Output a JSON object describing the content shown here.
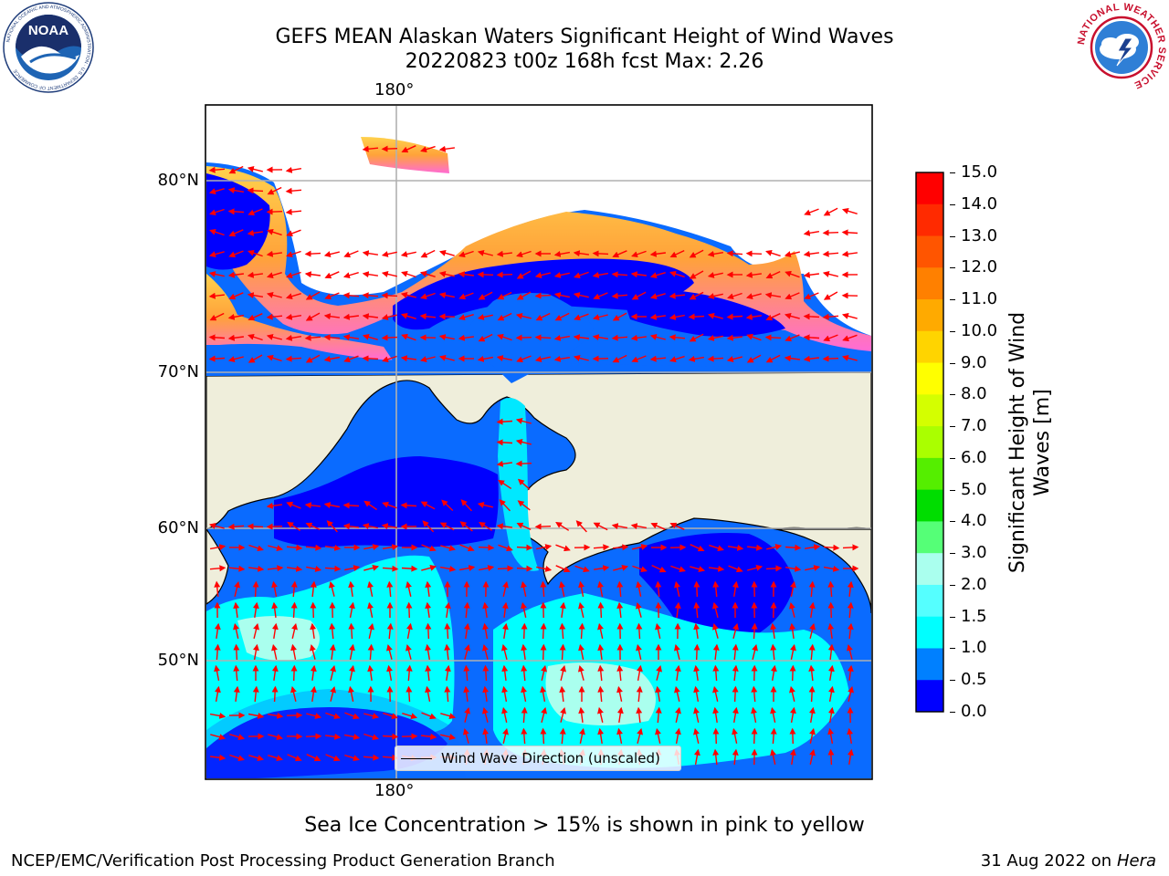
{
  "title": {
    "line1": "GEFS MEAN Alaskan Waters Significant Height of Wind Waves",
    "line2": "20220823 t00z 168h fcst   Max: 2.26"
  },
  "logos": {
    "left": {
      "icon": "noaa-logo",
      "text": "NOAA",
      "ring_text": "NATIONAL OCEANIC AND ATMOSPHERIC ADMINISTRATION · U.S. DEPARTMENT OF COMMERCE"
    },
    "right": {
      "icon": "nws-logo",
      "ring_text": "NATIONAL WEATHER SERVICE"
    }
  },
  "map": {
    "lon_ticks": {
      "top": "180°",
      "bottom": "180°"
    },
    "lat_ticks": [
      "80°N",
      "70°N",
      "60°N",
      "50°N"
    ],
    "legend": {
      "label": "Wind Wave Direction (unscaled)"
    },
    "colors": {
      "land": "#efeedb",
      "ice_free_white": "#ffffff",
      "arrow": "#ff0000"
    }
  },
  "colorbar": {
    "title": "Significant Height of Wind\nWaves [m]",
    "labels": [
      "15.0",
      "14.0",
      "13.0",
      "12.0",
      "11.0",
      "10.0",
      "9.0",
      "8.0",
      "7.0",
      "6.0",
      "5.0",
      "4.0",
      "3.0",
      "2.0",
      "1.5",
      "1.0",
      "0.5",
      "0.0"
    ],
    "colors_top_to_bottom": [
      "#ff0000",
      "#ff2a00",
      "#ff5500",
      "#ff8000",
      "#ffaa00",
      "#ffd400",
      "#ffff00",
      "#d4ff00",
      "#aaff00",
      "#55ee00",
      "#00dd00",
      "#55ff77",
      "#aaffee",
      "#55ffff",
      "#00ffff",
      "#0080ff",
      "#0000ff"
    ]
  },
  "note": "Sea Ice Concentration > 15% is shown in pink to yellow",
  "footer": {
    "left": "NCEP/EMC/Verification Post Processing Product Generation Branch",
    "date": "31 Aug 2022 on",
    "machine": "Hera"
  }
}
